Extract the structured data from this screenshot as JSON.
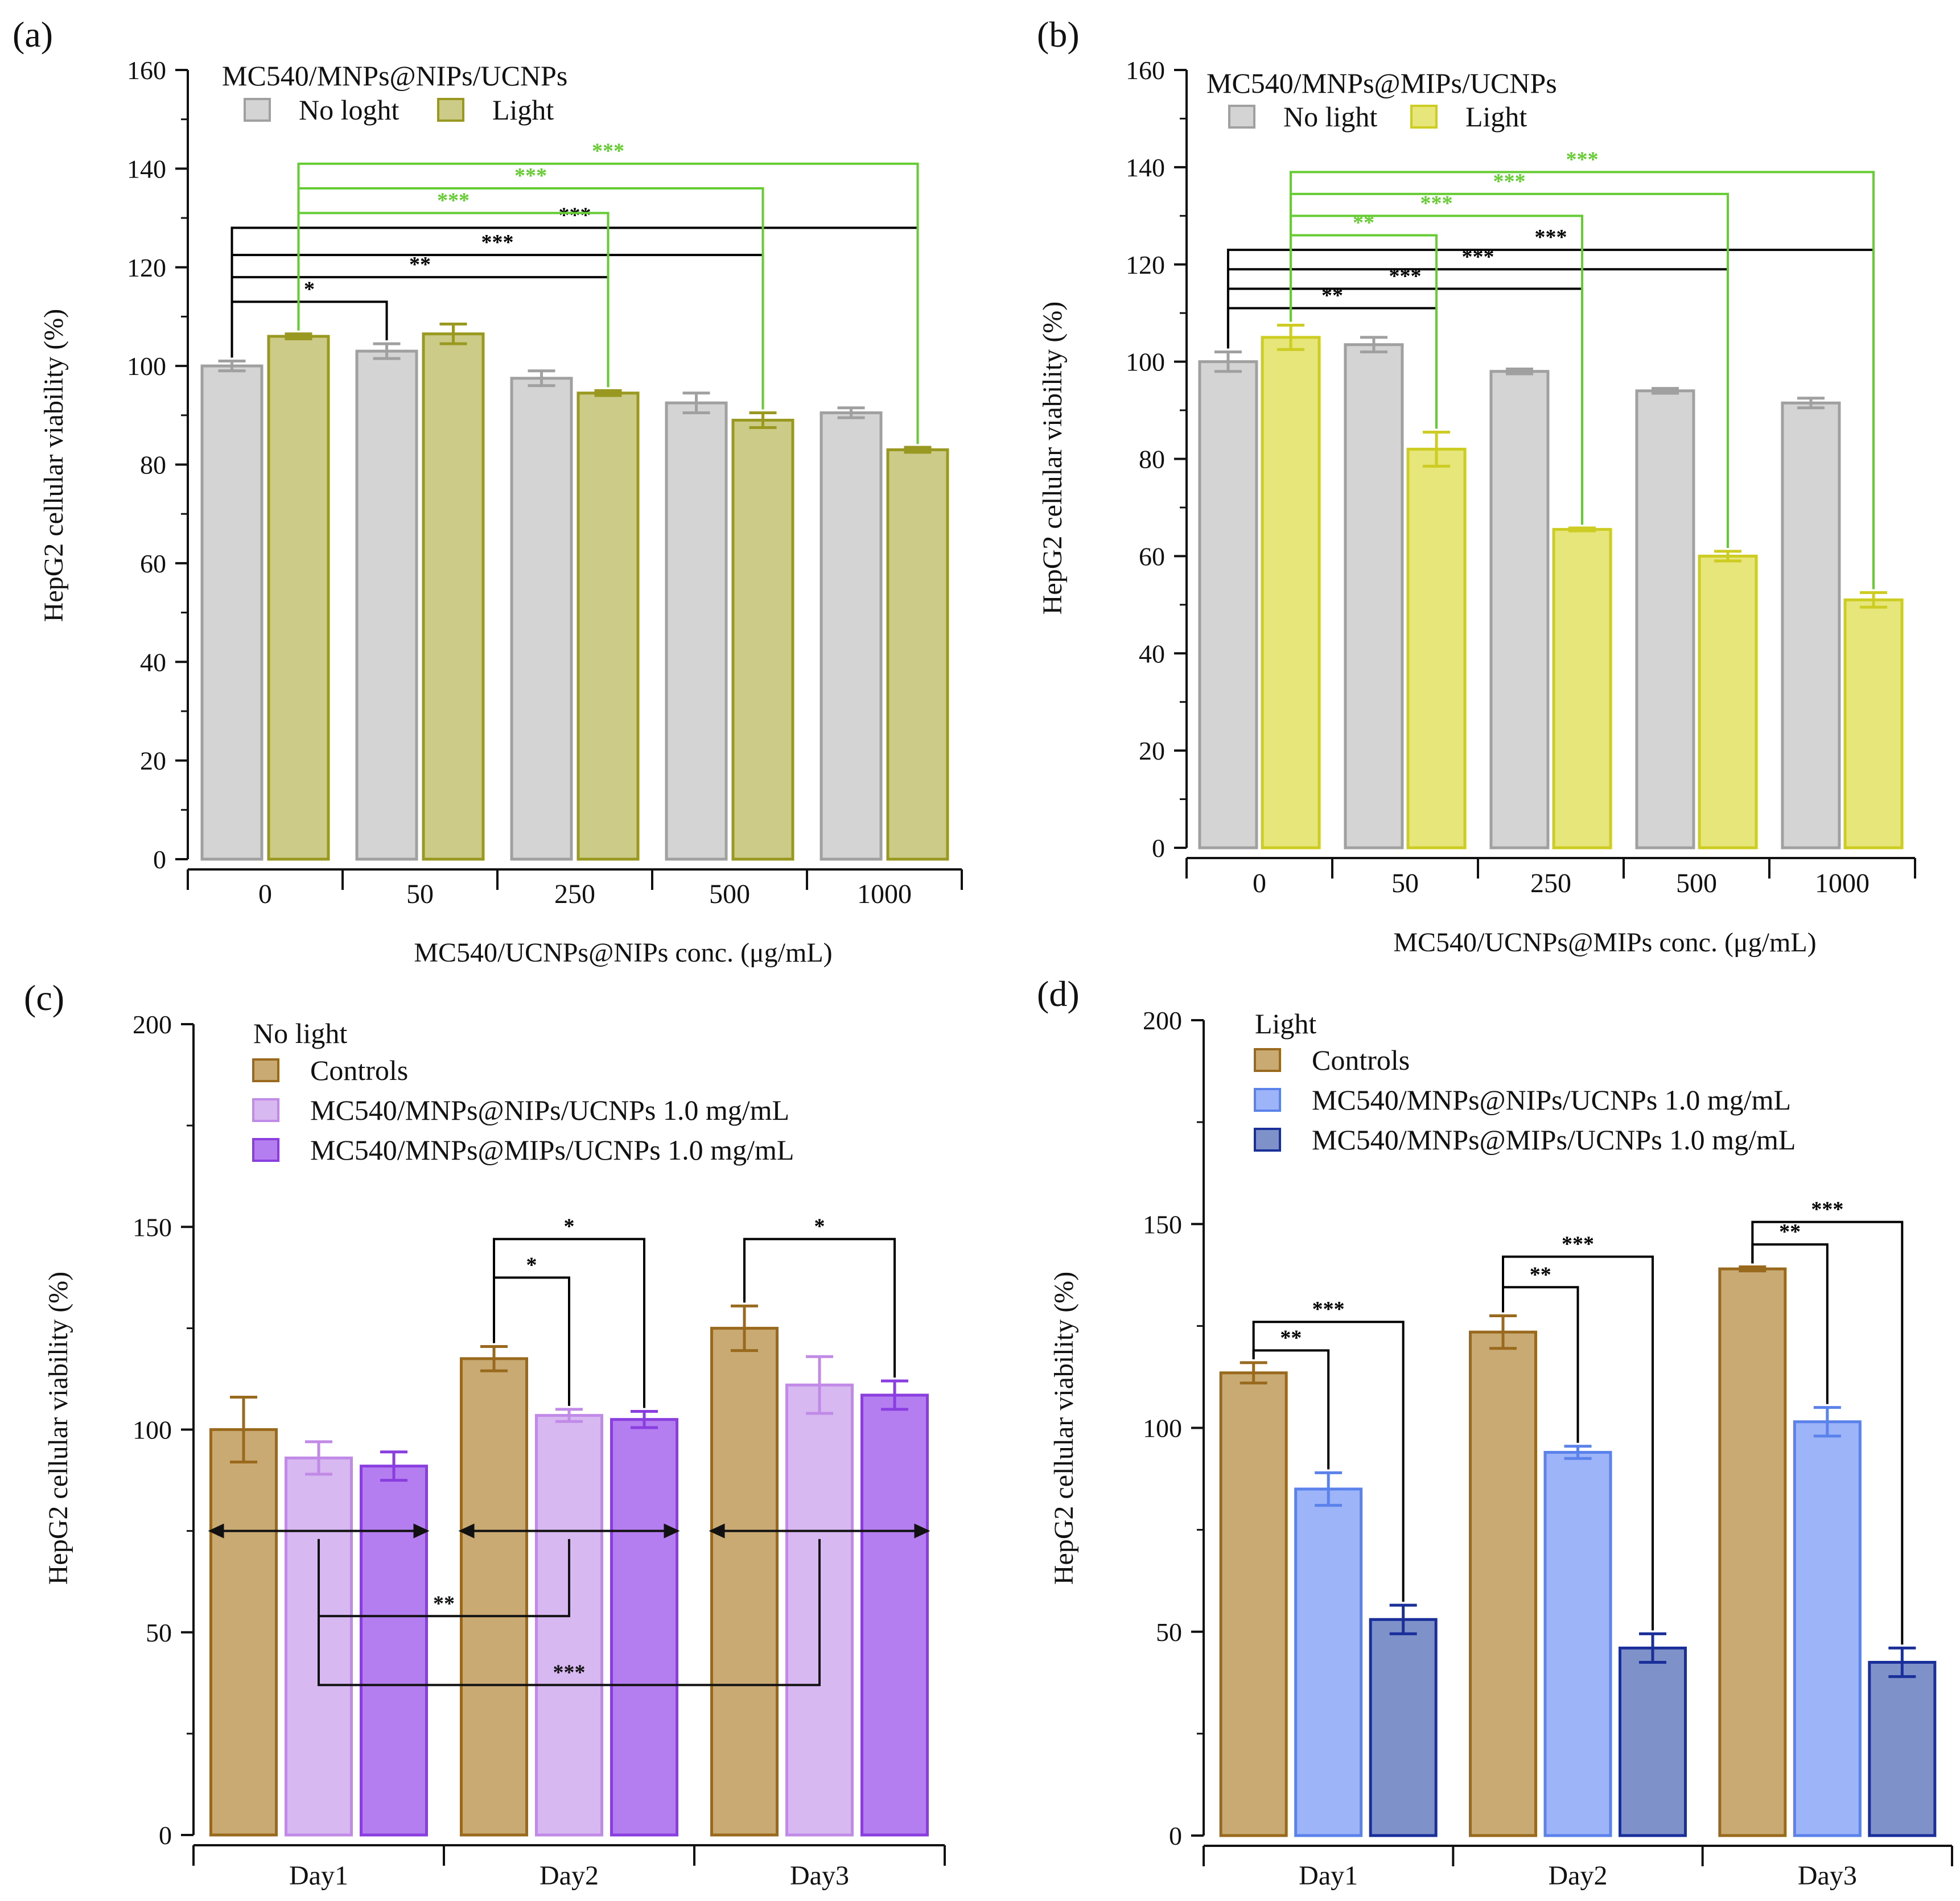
{
  "chart_data": [
    {
      "panel_label": "(a)",
      "type": "bar",
      "ylabel": "HepG2 cellular viability (%)",
      "xlabel": "MC540/UCNPs@NIPs conc. (μg/mL)",
      "ylim": [
        0,
        160
      ],
      "ytick_step": 20,
      "yticks": [
        "0",
        "20",
        "40",
        "60",
        "80",
        "100",
        "120",
        "140",
        "160"
      ],
      "categories": [
        "0",
        "50",
        "250",
        "500",
        "1000"
      ],
      "legend_title": "MC540/MNPs@NIPs/UCNPs",
      "legend_position": "top-left",
      "series": [
        {
          "name": "No loght",
          "fill": "#d4d4d4",
          "stroke": "#a0a0a0",
          "values": [
            100,
            103,
            97.5,
            92.5,
            90.5
          ],
          "errors": [
            1,
            1.5,
            1.5,
            2,
            1
          ]
        },
        {
          "name": "Light",
          "fill": "#cccc88",
          "stroke": "#999922",
          "values": [
            106,
            106.5,
            94.5,
            89,
            83
          ],
          "errors": [
            0.5,
            2,
            0.5,
            1.5,
            0.5
          ]
        }
      ],
      "brackets": [
        {
          "from_series": 0,
          "from_cat": 0,
          "to_series": 0,
          "to_cat": 1,
          "y": 113,
          "label": "*",
          "color": "#000000"
        },
        {
          "from_series": 0,
          "from_cat": 0,
          "to_series": 1,
          "to_cat": 2,
          "y": 118,
          "label": "**",
          "color": "#000000"
        },
        {
          "from_series": 0,
          "from_cat": 0,
          "to_series": 1,
          "to_cat": 3,
          "y": 122.5,
          "label": "***",
          "color": "#000000"
        },
        {
          "from_series": 0,
          "from_cat": 0,
          "to_series": 1,
          "to_cat": 4,
          "y": 128,
          "label": "***",
          "color": "#000000"
        },
        {
          "from_series": 1,
          "from_cat": 0,
          "to_series": 1,
          "to_cat": 2,
          "y": 131,
          "label": "***",
          "color": "#66cc33"
        },
        {
          "from_series": 1,
          "from_cat": 0,
          "to_series": 1,
          "to_cat": 3,
          "y": 136,
          "label": "***",
          "color": "#66cc33"
        },
        {
          "from_series": 1,
          "from_cat": 0,
          "to_series": 1,
          "to_cat": 4,
          "y": 141,
          "label": "***",
          "color": "#66cc33"
        }
      ]
    },
    {
      "panel_label": "(b)",
      "type": "bar",
      "ylabel": "HepG2 cellular viability (%)",
      "xlabel": "MC540/UCNPs@MIPs conc. (μg/mL)",
      "ylim": [
        0,
        160
      ],
      "ytick_step": 20,
      "yticks": [
        "0",
        "20",
        "40",
        "60",
        "80",
        "100",
        "120",
        "140",
        "160"
      ],
      "categories": [
        "0",
        "50",
        "250",
        "500",
        "1000"
      ],
      "legend_title": "MC540/MNPs@MIPs/UCNPs",
      "legend_position": "top-left",
      "series": [
        {
          "name": "No light",
          "fill": "#d4d4d4",
          "stroke": "#a0a0a0",
          "values": [
            100,
            103.5,
            98,
            94,
            91.5
          ],
          "errors": [
            2,
            1.5,
            0.5,
            0.5,
            1
          ]
        },
        {
          "name": "Light",
          "fill": "#e6e67a",
          "stroke": "#cccc22",
          "values": [
            105,
            82,
            65.5,
            60,
            51
          ],
          "errors": [
            2.5,
            3.5,
            0.3,
            1,
            1.5
          ]
        }
      ],
      "brackets": [
        {
          "from_series": 0,
          "from_cat": 0,
          "to_series": 1,
          "to_cat": 1,
          "y": 111,
          "label": "**",
          "color": "#000000"
        },
        {
          "from_series": 0,
          "from_cat": 0,
          "to_series": 1,
          "to_cat": 2,
          "y": 115,
          "label": "***",
          "color": "#000000"
        },
        {
          "from_series": 0,
          "from_cat": 0,
          "to_series": 1,
          "to_cat": 3,
          "y": 119,
          "label": "***",
          "color": "#000000"
        },
        {
          "from_series": 0,
          "from_cat": 0,
          "to_series": 1,
          "to_cat": 4,
          "y": 123,
          "label": "***",
          "color": "#000000"
        },
        {
          "from_series": 1,
          "from_cat": 0,
          "to_series": 1,
          "to_cat": 1,
          "y": 126,
          "label": "**",
          "color": "#66cc33"
        },
        {
          "from_series": 1,
          "from_cat": 0,
          "to_series": 1,
          "to_cat": 2,
          "y": 130,
          "label": "***",
          "color": "#66cc33"
        },
        {
          "from_series": 1,
          "from_cat": 0,
          "to_series": 1,
          "to_cat": 3,
          "y": 134.5,
          "label": "***",
          "color": "#66cc33"
        },
        {
          "from_series": 1,
          "from_cat": 0,
          "to_series": 1,
          "to_cat": 4,
          "y": 139,
          "label": "***",
          "color": "#66cc33"
        }
      ]
    },
    {
      "panel_label": "(c)",
      "type": "bar",
      "ylabel": "HepG2 cellular viability (%)",
      "xlabel": "",
      "ylim": [
        0,
        200
      ],
      "ytick_step": 50,
      "yticks": [
        "0",
        "50",
        "100",
        "150",
        "200"
      ],
      "categories": [
        "Day1",
        "Day2",
        "Day3"
      ],
      "legend_title": "No  light",
      "legend_position": "top-left",
      "series": [
        {
          "name": "Controls",
          "fill": "#c9aa73",
          "stroke": "#996a1e",
          "values": [
            100,
            117.5,
            125
          ],
          "errors": [
            8,
            3,
            5.5
          ]
        },
        {
          "name": "MC540/MNPs@NIPs/UCNPs 1.0 mg/mL",
          "fill": "#d8b8f0",
          "stroke": "#c08ae6",
          "values": [
            93,
            103.5,
            111
          ],
          "errors": [
            4,
            1.5,
            7
          ]
        },
        {
          "name": "MC540/MNPs@MIPs/UCNPs 1.0 mg/mL",
          "fill": "#b47ef0",
          "stroke": "#8a3ee0",
          "values": [
            91,
            102.5,
            108.5
          ],
          "errors": [
            3.5,
            2,
            3.5
          ]
        }
      ],
      "brackets": [
        {
          "from_series": 0,
          "from_cat": 1,
          "to_series": 1,
          "to_cat": 1,
          "y": 137.5,
          "label": "*",
          "color": "#000000"
        },
        {
          "from_series": 0,
          "from_cat": 1,
          "to_series": 2,
          "to_cat": 1,
          "y": 147,
          "label": "*",
          "color": "#000000"
        },
        {
          "from_series": 0,
          "from_cat": 2,
          "to_series": 2,
          "to_cat": 2,
          "y": 147,
          "label": "*",
          "color": "#000000"
        }
      ],
      "group_arrows": [
        {
          "y": 75
        },
        {
          "y": 75
        },
        {
          "y": 75
        }
      ],
      "lower_brackets": [
        {
          "from_series": 1,
          "from_cat": 0,
          "to_series": 1,
          "to_cat": 1,
          "top_y": 73,
          "y": 54,
          "label": "**"
        },
        {
          "from_series": 1,
          "from_cat": 0,
          "to_series": 1,
          "to_cat": 2,
          "top_y": 73,
          "y": 37,
          "label": "***"
        }
      ]
    },
    {
      "panel_label": "(d)",
      "type": "bar",
      "ylabel": "HepG2 cellular viability (%)",
      "xlabel": "",
      "ylim": [
        0,
        200
      ],
      "ytick_step": 50,
      "yticks": [
        "0",
        "50",
        "100",
        "150",
        "200"
      ],
      "categories": [
        "Day1",
        "Day2",
        "Day3"
      ],
      "legend_title": "Light",
      "legend_position": "top-left",
      "series": [
        {
          "name": "Controls",
          "fill": "#c9aa73",
          "stroke": "#996a1e",
          "values": [
            113.5,
            123.5,
            139
          ],
          "errors": [
            2.5,
            4,
            0.5
          ]
        },
        {
          "name": "MC540/MNPs@NIPs/UCNPs 1.0 mg/mL",
          "fill": "#9db4f8",
          "stroke": "#5a82ea",
          "values": [
            85,
            94,
            101.5
          ],
          "errors": [
            4,
            1.5,
            3.5
          ]
        },
        {
          "name": "MC540/MNPs@MIPs/UCNPs 1.0 mg/mL",
          "fill": "#7f91c9",
          "stroke": "#1a2f9a",
          "values": [
            53,
            46,
            42.5
          ],
          "errors": [
            3.5,
            3.5,
            3.5
          ]
        }
      ],
      "brackets": [
        {
          "from_series": 0,
          "from_cat": 0,
          "to_series": 1,
          "to_cat": 0,
          "y": 119,
          "label": "**",
          "color": "#000000"
        },
        {
          "from_series": 0,
          "from_cat": 0,
          "to_series": 2,
          "to_cat": 0,
          "y": 126,
          "label": "***",
          "color": "#000000"
        },
        {
          "from_series": 0,
          "from_cat": 1,
          "to_series": 1,
          "to_cat": 1,
          "y": 134.5,
          "label": "**",
          "color": "#000000"
        },
        {
          "from_series": 0,
          "from_cat": 1,
          "to_series": 2,
          "to_cat": 1,
          "y": 142,
          "label": "***",
          "color": "#000000"
        },
        {
          "from_series": 0,
          "from_cat": 2,
          "to_series": 1,
          "to_cat": 2,
          "y": 145,
          "label": "**",
          "color": "#000000"
        },
        {
          "from_series": 0,
          "from_cat": 2,
          "to_series": 2,
          "to_cat": 2,
          "y": 150.5,
          "label": "***",
          "color": "#000000"
        }
      ]
    }
  ]
}
